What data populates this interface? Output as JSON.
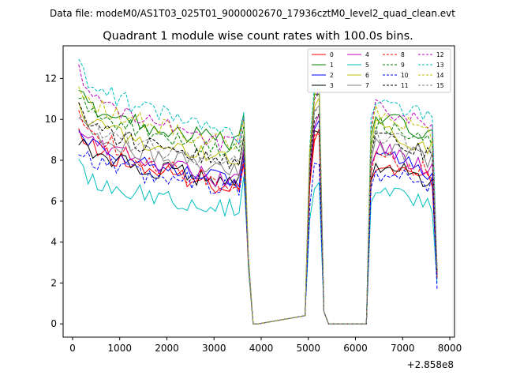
{
  "header": {
    "data_file": "Data file: modeM0/AS1T03_025T01_9000002670_17936cztM0_level2_quad_clean.evt"
  },
  "chart_data": {
    "type": "line",
    "title": "Quadrant 1 module wise count rates with 100.0s bins.",
    "xlabel": "",
    "ylabel": "",
    "x_offset_label": "+2.858e8",
    "xlim": [
      -200,
      8100
    ],
    "ylim": [
      -0.65,
      13.6
    ],
    "x_ticks": [
      0,
      1000,
      2000,
      3000,
      4000,
      5000,
      6000,
      7000,
      8000
    ],
    "y_ticks": [
      0,
      2,
      4,
      6,
      8,
      10,
      12
    ],
    "legend_position": "top-right",
    "x": [
      130,
      230,
      330,
      430,
      530,
      630,
      730,
      830,
      930,
      1030,
      1130,
      1230,
      1330,
      1430,
      1530,
      1630,
      1730,
      1830,
      1930,
      2030,
      2130,
      2230,
      2330,
      2430,
      2530,
      2630,
      2730,
      2830,
      2930,
      3030,
      3130,
      3230,
      3330,
      3430,
      3530,
      3630,
      3730,
      3830,
      3930,
      4930,
      5030,
      5130,
      5230,
      5330,
      5430,
      6230,
      6330,
      6430,
      6530,
      6630,
      6730,
      6830,
      6930,
      7030,
      7130,
      7230,
      7330,
      7430,
      7530,
      7630,
      7730
    ],
    "base_levels": [
      {
        "seg1": [
          9.4,
          6.6
        ],
        "seg2": 9.0,
        "seg3": [
          7.8,
          7.0
        ],
        "end": 2.3
      },
      {
        "seg1": [
          11.4,
          8.8
        ],
        "seg2": 11.0,
        "seg3": [
          10.2,
          9.2
        ],
        "end": 2.5
      },
      {
        "seg1": [
          9.6,
          7.0
        ],
        "seg2": 9.6,
        "seg3": [
          8.6,
          7.4
        ],
        "end": 2.4
      },
      {
        "seg1": [
          9.0,
          6.9
        ],
        "seg2": 9.2,
        "seg3": [
          7.8,
          7.0
        ],
        "end": 2.2
      },
      {
        "seg1": [
          9.8,
          6.9
        ],
        "seg2": 9.8,
        "seg3": [
          8.6,
          7.6
        ],
        "end": 2.5
      },
      {
        "seg1": [
          7.7,
          5.6
        ],
        "seg2": 6.8,
        "seg3": [
          6.6,
          5.8
        ],
        "end": 2.0
      },
      {
        "seg1": [
          10.6,
          8.0
        ],
        "seg2": 10.8,
        "seg3": [
          9.6,
          8.6
        ],
        "end": 2.6
      },
      {
        "seg1": [
          10.0,
          7.4
        ],
        "seg2": 10.2,
        "seg3": [
          8.8,
          8.0
        ],
        "end": 2.5
      },
      {
        "seg1": [
          10.5,
          6.6
        ],
        "seg2": 9.0,
        "seg3": [
          8.2,
          7.4
        ],
        "end": 2.3
      },
      {
        "seg1": [
          11.2,
          8.4
        ],
        "seg2": 10.8,
        "seg3": [
          9.8,
          8.9
        ],
        "end": 2.6
      },
      {
        "seg1": [
          8.6,
          6.6
        ],
        "seg2": 7.6,
        "seg3": [
          7.4,
          6.8
        ],
        "end": 1.7
      },
      {
        "seg1": [
          10.4,
          7.8
        ],
        "seg2": 10.2,
        "seg3": [
          9.2,
          8.2
        ],
        "end": 2.5
      },
      {
        "seg1": [
          12.4,
          8.6
        ],
        "seg2": 11.2,
        "seg3": [
          10.6,
          9.6
        ],
        "end": 2.7
      },
      {
        "seg1": [
          12.8,
          9.2
        ],
        "seg2": 11.6,
        "seg3": [
          11.2,
          10.0
        ],
        "end": 2.8
      },
      {
        "seg1": [
          11.6,
          8.8
        ],
        "seg2": 11.4,
        "seg3": [
          10.4,
          9.4
        ],
        "end": 2.7
      },
      {
        "seg1": [
          10.2,
          7.8
        ],
        "seg2": 10.4,
        "seg3": [
          9.2,
          8.4
        ],
        "end": 2.6
      }
    ],
    "series": [
      {
        "name": "0",
        "color": "#ff0000",
        "style": "solid"
      },
      {
        "name": "1",
        "color": "#008000",
        "style": "solid"
      },
      {
        "name": "2",
        "color": "#0000ff",
        "style": "solid"
      },
      {
        "name": "3",
        "color": "#000000",
        "style": "solid"
      },
      {
        "name": "4",
        "color": "#bf00bf",
        "style": "solid"
      },
      {
        "name": "5",
        "color": "#00bfbf",
        "style": "solid"
      },
      {
        "name": "6",
        "color": "#bfbf00",
        "style": "solid"
      },
      {
        "name": "7",
        "color": "#808080",
        "style": "solid"
      },
      {
        "name": "8",
        "color": "#ff0000",
        "style": "dashed"
      },
      {
        "name": "9",
        "color": "#008000",
        "style": "dashed"
      },
      {
        "name": "10",
        "color": "#0000ff",
        "style": "dashed"
      },
      {
        "name": "11",
        "color": "#000000",
        "style": "dashed"
      },
      {
        "name": "12",
        "color": "#bf00bf",
        "style": "dashed"
      },
      {
        "name": "13",
        "color": "#00bfbf",
        "style": "dashed"
      },
      {
        "name": "14",
        "color": "#bfbf00",
        "style": "dashed"
      },
      {
        "name": "15",
        "color": "#808080",
        "style": "dashed"
      }
    ]
  }
}
